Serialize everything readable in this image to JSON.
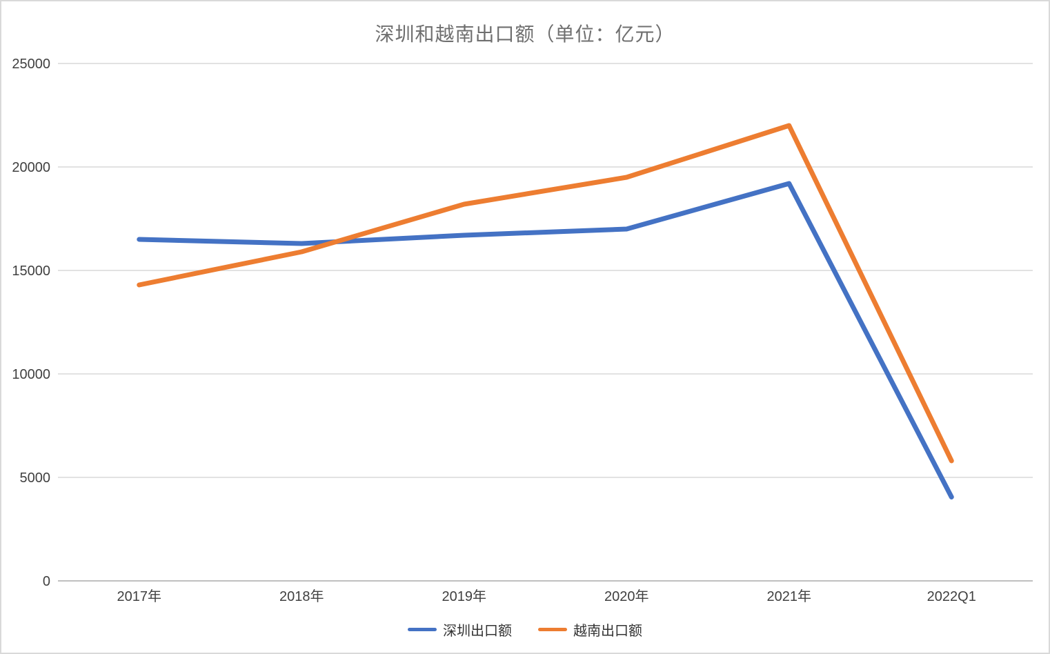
{
  "chart_data": {
    "type": "line",
    "title": "深圳和越南出口额（单位：亿元）",
    "categories": [
      "2017年",
      "2018年",
      "2019年",
      "2020年",
      "2021年",
      "2022Q1"
    ],
    "series": [
      {
        "name": "深圳出口额",
        "color": "#4472C4",
        "values": [
          16500,
          16300,
          16700,
          17000,
          19200,
          4050
        ]
      },
      {
        "name": "越南出口额",
        "color": "#ED7D31",
        "values": [
          14300,
          15900,
          18200,
          19500,
          22000,
          5800
        ]
      }
    ],
    "xlabel": "",
    "ylabel": "",
    "ylim": [
      0,
      25000
    ],
    "y_ticks": [
      0,
      5000,
      10000,
      15000,
      20000,
      25000
    ],
    "grid": "horizontal",
    "legend_position": "bottom"
  },
  "style": {
    "background": "#FFFFFF",
    "border_color": "#D9D9D9",
    "title_color": "#6F6F6F",
    "axis_label_color": "#404040",
    "legend_label_color": "#333333",
    "gridline_color": "#D9D9D9",
    "axis_line_color": "#BFBFBF",
    "series_colors": [
      "#4472C4",
      "#ED7D31"
    ]
  }
}
